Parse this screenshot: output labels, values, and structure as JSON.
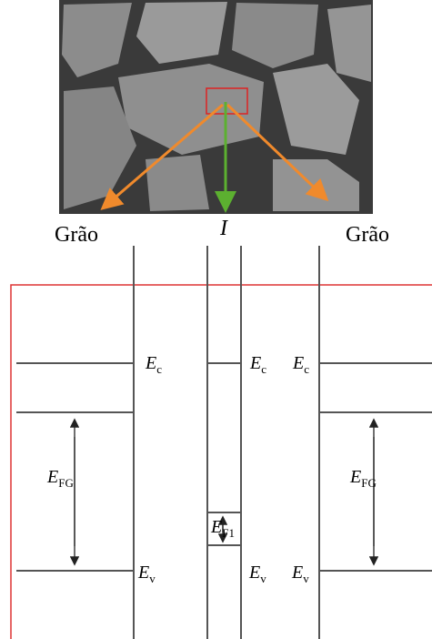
{
  "labels": {
    "left_grain": "Grão",
    "interface": "I",
    "right_grain": "Grão"
  },
  "band_labels": [
    {
      "symbol": "E",
      "subscript": "c"
    },
    {
      "symbol": "E",
      "subscript": "c"
    },
    {
      "symbol": "E",
      "subscript": "c"
    },
    {
      "symbol": "E",
      "subscript": "FG"
    },
    {
      "symbol": "E",
      "subscript": "FG"
    },
    {
      "symbol": "E",
      "subscript": "F1"
    },
    {
      "symbol": "E",
      "subscript": "v"
    },
    {
      "symbol": "E",
      "subscript": "v"
    },
    {
      "symbol": "E",
      "subscript": "v"
    }
  ]
}
